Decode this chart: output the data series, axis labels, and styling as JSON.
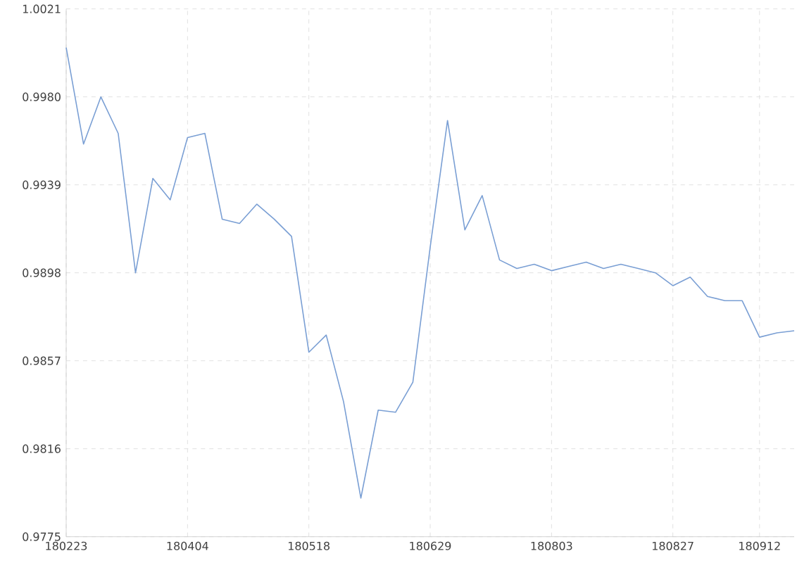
{
  "chart_data": {
    "type": "line",
    "categories": [
      "180223",
      null,
      null,
      null,
      null,
      null,
      null,
      "180404",
      null,
      null,
      null,
      null,
      null,
      null,
      "180518",
      null,
      null,
      null,
      null,
      null,
      null,
      "180629",
      null,
      null,
      null,
      null,
      null,
      null,
      "180803",
      null,
      null,
      null,
      null,
      null,
      null,
      "180827",
      null,
      null,
      null,
      null,
      "180912",
      null,
      null
    ],
    "series": [
      {
        "color": "#7a9fd4",
        "values": [
          1.0003,
          0.9958,
          0.998,
          0.9963,
          0.9898,
          0.9942,
          0.9932,
          0.9961,
          0.9963,
          0.9923,
          0.9921,
          0.993,
          0.9923,
          0.9915,
          0.9861,
          0.9869,
          0.9838,
          0.9793,
          0.9834,
          0.9833,
          0.9847,
          0.991,
          0.9969,
          0.9918,
          0.9934,
          0.9904,
          0.99,
          0.9902,
          0.9899,
          0.9901,
          0.9903,
          0.99,
          0.9902,
          0.99,
          0.9898,
          0.9892,
          0.9896,
          0.9887,
          0.9885,
          0.9885,
          0.9868,
          0.987,
          0.9871
        ]
      }
    ],
    "ylim": [
      0.9775,
      1.0021
    ],
    "yticks": [
      0.9775,
      0.9816,
      0.9857,
      0.9898,
      0.9939,
      {
        "value": 0.998,
        "label": "0.9980"
      },
      1.0021
    ],
    "grid": true,
    "line_style": "solid",
    "marker": "none"
  }
}
